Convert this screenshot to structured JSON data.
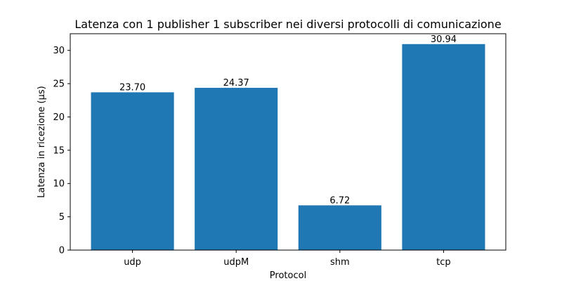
{
  "chart_data": {
    "type": "bar",
    "title": "Latenza con 1 publisher 1 subscriber nei diversi protocolli di comunicazione",
    "xlabel": "Protocol",
    "ylabel": "Latenza in ricezione (µs)",
    "categories": [
      "udp",
      "udpM",
      "shm",
      "tcp"
    ],
    "values": [
      23.7,
      24.37,
      6.72,
      30.94
    ],
    "data_labels": [
      "23.70",
      "24.37",
      "6.72",
      "30.94"
    ],
    "ylim": [
      0,
      32.5
    ],
    "yticks": [
      0,
      5,
      10,
      15,
      20,
      25,
      30
    ],
    "grid": false,
    "bar_color": "#1f77b4"
  }
}
